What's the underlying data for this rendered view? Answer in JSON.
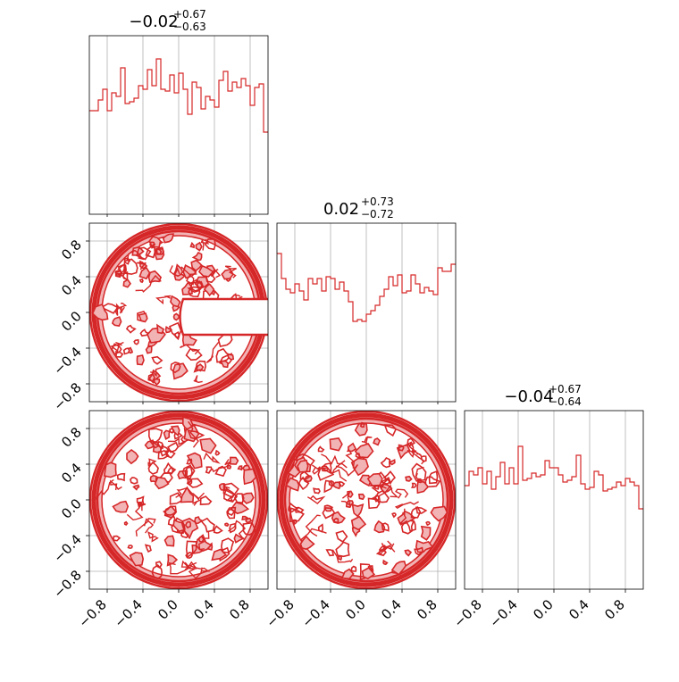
{
  "chart_data": {
    "type": "corner",
    "color": "#d62728",
    "fill_color": "#f2b3b5",
    "grid": true,
    "parameters": 3,
    "axis_range": [
      -1.0,
      1.0
    ],
    "tick_values": [
      -0.8,
      -0.4,
      0.0,
      0.4,
      0.8
    ],
    "tick_labels": [
      "−0.8",
      "−0.4",
      "0.0",
      "0.4",
      "0.8"
    ],
    "marginals": [
      {
        "title_value": "−0.02",
        "title_plus": "+0.67",
        "title_minus": "−0.63",
        "bin_edges_start": -1.0,
        "bin_width": 0.05,
        "counts": [
          0.58,
          0.58,
          0.64,
          0.7,
          0.58,
          0.68,
          0.66,
          0.82,
          0.62,
          0.63,
          0.65,
          0.72,
          0.7,
          0.81,
          0.72,
          0.87,
          0.7,
          0.69,
          0.78,
          0.68,
          0.79,
          0.7,
          0.56,
          0.74,
          0.71,
          0.59,
          0.66,
          0.64,
          0.6,
          0.75,
          0.8,
          0.69,
          0.74,
          0.71,
          0.76,
          0.72,
          0.61,
          0.71,
          0.73,
          0.46
        ]
      },
      {
        "title_value": "0.02",
        "title_plus": "+0.73",
        "title_minus": "−0.72",
        "bin_edges_start": -1.0,
        "bin_width": 0.05,
        "counts": [
          0.83,
          0.69,
          0.63,
          0.61,
          0.66,
          0.62,
          0.57,
          0.69,
          0.66,
          0.69,
          0.62,
          0.7,
          0.69,
          0.63,
          0.67,
          0.62,
          0.56,
          0.45,
          0.46,
          0.45,
          0.49,
          0.51,
          0.54,
          0.59,
          0.63,
          0.7,
          0.65,
          0.71,
          0.61,
          0.62,
          0.71,
          0.66,
          0.61,
          0.64,
          0.62,
          0.6,
          0.75,
          0.73,
          0.73,
          0.77
        ]
      },
      {
        "title_value": "−0.04",
        "title_plus": "+0.67",
        "title_minus": "−0.64",
        "bin_edges_start": -1.0,
        "bin_width": 0.05,
        "counts": [
          0.58,
          0.66,
          0.64,
          0.68,
          0.59,
          0.66,
          0.56,
          0.63,
          0.71,
          0.59,
          0.68,
          0.59,
          0.8,
          0.61,
          0.62,
          0.65,
          0.63,
          0.64,
          0.72,
          0.68,
          0.68,
          0.64,
          0.6,
          0.61,
          0.63,
          0.75,
          0.59,
          0.56,
          0.57,
          0.66,
          0.64,
          0.55,
          0.56,
          0.57,
          0.6,
          0.58,
          0.62,
          0.6,
          0.58,
          0.45
        ]
      }
    ],
    "joint_panels": [
      {
        "x_param": 0,
        "y_param": 1,
        "shape": "disk",
        "radius": 1.0,
        "notch": "right half, y from -0.25 to 0.15"
      },
      {
        "x_param": 0,
        "y_param": 2,
        "shape": "disk",
        "radius": 1.0
      },
      {
        "x_param": 1,
        "y_param": 2,
        "shape": "disk",
        "radius": 1.0
      }
    ]
  }
}
